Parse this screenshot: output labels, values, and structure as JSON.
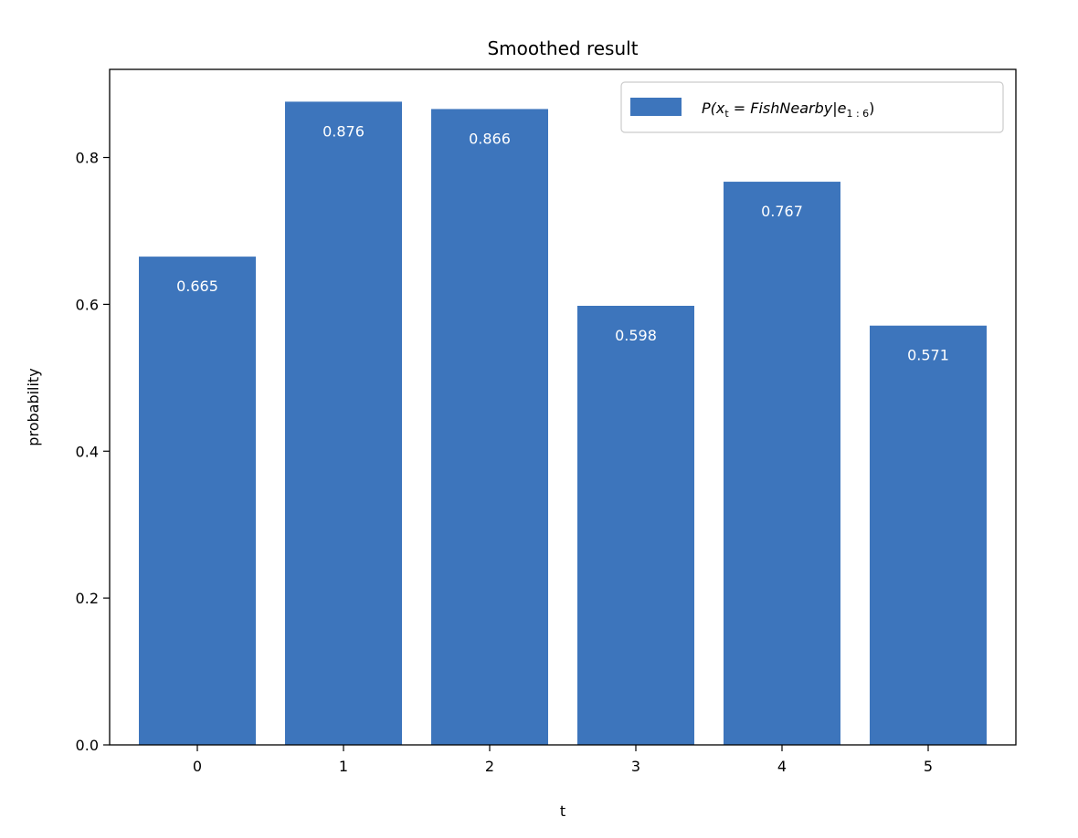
{
  "chart_data": {
    "type": "bar",
    "title": "Smoothed result",
    "xlabel": "t",
    "ylabel": "probability",
    "categories": [
      "0",
      "1",
      "2",
      "3",
      "4",
      "5"
    ],
    "series": [
      {
        "name": "P(x_t = FishNearby|e_{1:6})",
        "values": [
          0.665,
          0.876,
          0.866,
          0.598,
          0.767,
          0.571
        ]
      }
    ],
    "data_labels": [
      "0.665",
      "0.876",
      "0.866",
      "0.598",
      "0.767",
      "0.571"
    ],
    "ylim": [
      0,
      0.92
    ],
    "yticks": [
      0.0,
      0.2,
      0.4,
      0.6,
      0.8
    ],
    "ytick_labels": [
      "0.0",
      "0.2",
      "0.4",
      "0.6",
      "0.8"
    ],
    "grid": false,
    "legend_position": "top-right",
    "bar_color": "#3d75bc",
    "legend": {
      "p": "P(",
      "x": "x",
      "t_sub": "t",
      "eq": " = ",
      "event": "FishNearby",
      "bar": "|",
      "e": "e",
      "e_sub": "1 : 6",
      "close": ")"
    }
  }
}
